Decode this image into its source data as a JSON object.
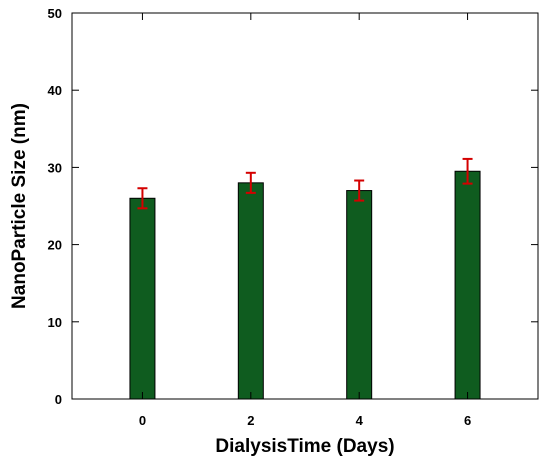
{
  "chart_data": {
    "type": "bar",
    "categories": [
      "0",
      "2",
      "4",
      "6"
    ],
    "x_values": [
      0,
      2,
      4,
      6
    ],
    "values": [
      26.0,
      28.0,
      27.0,
      29.5
    ],
    "error": [
      1.3,
      1.3,
      1.3,
      1.6
    ],
    "xlabel": "DialysisTime (Days)",
    "ylabel": "NanoParticle Size (nm)",
    "ylim": [
      0,
      50
    ],
    "xlim": [
      -1.3,
      7.3
    ],
    "yticks": [
      "0",
      "10",
      "20",
      "30",
      "40",
      "50"
    ],
    "xticks": [
      "0",
      "2",
      "4",
      "6"
    ],
    "grid": false,
    "bar_color": "#0f5c1f",
    "error_color": "#d40000"
  }
}
